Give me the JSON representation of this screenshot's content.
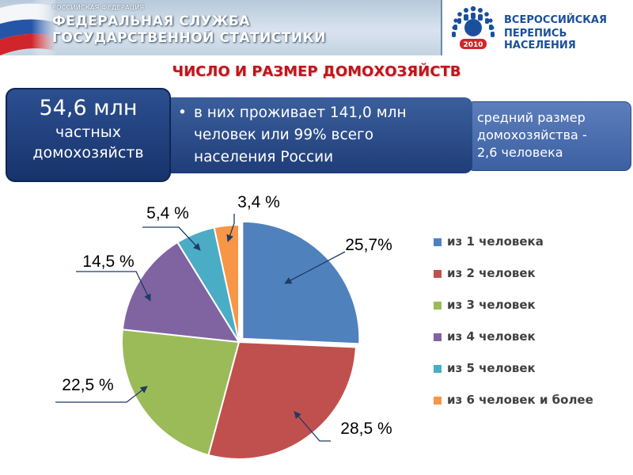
{
  "header": {
    "small_text": "РОССИЙСКАЯ ФЕДЕРАЦИЯ",
    "title_line1": "ФЕДЕРАЛЬНАЯ СЛУЖБА",
    "title_line2": "ГОСУДАРСТВЕННОЙ СТАТИСТИКИ",
    "census_line1": "ВСЕРОССИЙСКАЯ",
    "census_line2": "ПЕРЕПИСЬ НАСЕЛЕНИЯ",
    "census_year": "2010"
  },
  "slide_title": "ЧИСЛО И РАЗМЕР ДОМОХОЗЯЙСТВ",
  "box_left": {
    "number": "54,6 млн",
    "line1": "частных",
    "line2": "домохозяйств"
  },
  "box_mid": {
    "bullet": "•",
    "line1": "в них проживает 141,0 млн",
    "line2": "человек или 99% всего",
    "line3": "населения России"
  },
  "box_right": {
    "line1": "средний размер",
    "line2": "домохозяйства -",
    "line3": "2,6 человека"
  },
  "colors": {
    "accent_title": "#c0151a",
    "box_blue": "#1f3d78"
  },
  "chart_data": {
    "type": "pie",
    "title": "",
    "start": "12 o'clock, clockwise",
    "legend_position": "right",
    "categories": [
      "из 1 человека",
      "из 2 человек",
      "из 3 человек",
      "из 4 человек",
      "из 5 человек",
      "из 6 человек и более"
    ],
    "values": [
      25.7,
      28.5,
      22.5,
      14.5,
      5.4,
      3.4
    ],
    "data_labels": [
      "25,7%",
      "28,5 %",
      "22,5 %",
      "14,5 %",
      "5,4 %",
      "3,4 %"
    ],
    "colors": [
      "#4f81bd",
      "#c0504d",
      "#9bbb59",
      "#8064a2",
      "#4bacc6",
      "#f79646"
    ],
    "exploded_slice": 0
  }
}
